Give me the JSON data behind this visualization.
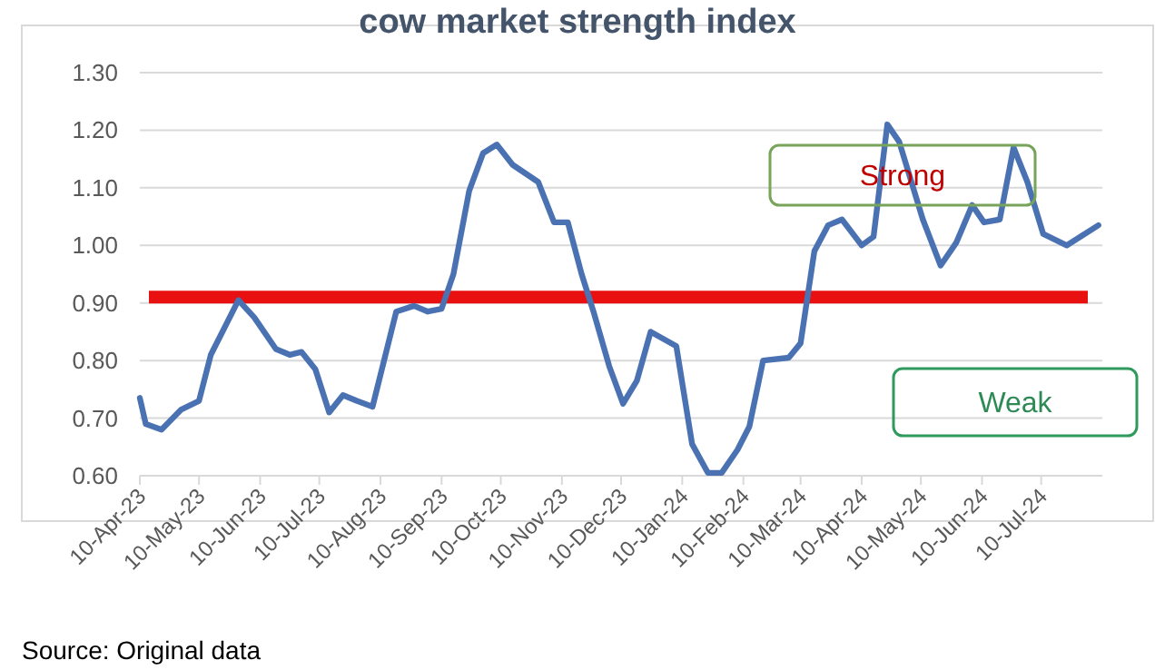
{
  "chart_data": {
    "type": "line",
    "title": "cow market strength index",
    "x": [
      "2023-04-10",
      "2023-04-13",
      "2023-04-21",
      "2023-05-01",
      "2023-05-10",
      "2023-05-16",
      "2023-05-30",
      "2023-06-07",
      "2023-06-18",
      "2023-06-25",
      "2023-07-01",
      "2023-07-08",
      "2023-07-15",
      "2023-07-22",
      "2023-07-29",
      "2023-08-06",
      "2023-08-18",
      "2023-08-27",
      "2023-09-03",
      "2023-09-10",
      "2023-09-16",
      "2023-09-24",
      "2023-10-01",
      "2023-10-08",
      "2023-10-16",
      "2023-10-29",
      "2023-11-06",
      "2023-11-13",
      "2023-11-20",
      "2023-11-26",
      "2023-12-04",
      "2023-12-11",
      "2023-12-18",
      "2023-12-25",
      "2024-01-07",
      "2024-01-15",
      "2024-01-23",
      "2024-01-30",
      "2024-02-07",
      "2024-02-13",
      "2024-02-20",
      "2024-03-04",
      "2024-03-10",
      "2024-03-17",
      "2024-03-24",
      "2024-03-31",
      "2024-04-10",
      "2024-04-16",
      "2024-04-23",
      "2024-04-29",
      "2024-05-11",
      "2024-05-20",
      "2024-05-28",
      "2024-06-05",
      "2024-06-11",
      "2024-06-19",
      "2024-06-26",
      "2024-07-03",
      "2024-07-11",
      "2024-07-23",
      "2024-08-08"
    ],
    "series": [
      {
        "color": "#4a72b2",
        "values": [
          0.735,
          0.69,
          0.68,
          0.715,
          0.73,
          0.81,
          0.905,
          0.875,
          0.82,
          0.81,
          0.815,
          0.785,
          0.71,
          0.74,
          0.73,
          0.72,
          0.885,
          0.895,
          0.885,
          0.89,
          0.95,
          1.095,
          1.16,
          1.175,
          1.14,
          1.11,
          1.04,
          1.04,
          0.95,
          0.885,
          0.79,
          0.725,
          0.765,
          0.85,
          0.825,
          0.655,
          0.605,
          0.605,
          0.645,
          0.685,
          0.8,
          0.805,
          0.83,
          0.99,
          1.035,
          1.045,
          1.0,
          1.015,
          1.21,
          1.18,
          1.045,
          0.965,
          1.005,
          1.07,
          1.04,
          1.045,
          1.17,
          1.11,
          1.02,
          1.0,
          1.035
        ]
      }
    ],
    "xlim": [
      "2023-04-10",
      "2024-08-10"
    ],
    "xticks": [
      {
        "value": "2023-04-10",
        "label": "10-Apr-23"
      },
      {
        "value": "2023-05-10",
        "label": "10-May-23"
      },
      {
        "value": "2023-06-10",
        "label": "10-Jun-23"
      },
      {
        "value": "2023-07-10",
        "label": "10-Jul-23"
      },
      {
        "value": "2023-08-10",
        "label": "10-Aug-23"
      },
      {
        "value": "2023-09-10",
        "label": "10-Sep-23"
      },
      {
        "value": "2023-10-10",
        "label": "10-Oct-23"
      },
      {
        "value": "2023-11-10",
        "label": "10-Nov-23"
      },
      {
        "value": "2023-12-10",
        "label": "10-Dec-23"
      },
      {
        "value": "2024-01-10",
        "label": "10-Jan-24"
      },
      {
        "value": "2024-02-10",
        "label": "10-Feb-24"
      },
      {
        "value": "2024-03-10",
        "label": "10-Mar-24"
      },
      {
        "value": "2024-04-10",
        "label": "10-Apr-24"
      },
      {
        "value": "2024-05-10",
        "label": "10-May-24"
      },
      {
        "value": "2024-06-10",
        "label": "10-Jun-24"
      },
      {
        "value": "2024-07-10",
        "label": "10-Jul-24"
      }
    ],
    "ylim": [
      0.6,
      1.3
    ],
    "yticks": [
      {
        "value": 0.6,
        "label": "0.60"
      },
      {
        "value": 0.7,
        "label": "0.70"
      },
      {
        "value": 0.8,
        "label": "0.80"
      },
      {
        "value": 0.9,
        "label": "0.90"
      },
      {
        "value": 1.0,
        "label": "1.00"
      },
      {
        "value": 1.1,
        "label": "1.10"
      },
      {
        "value": 1.2,
        "label": "1.20"
      },
      {
        "value": 1.3,
        "label": "1.30"
      }
    ],
    "grid": "y",
    "line_style": "solid",
    "marker": "none",
    "ref_lines": [
      {
        "axis": "y",
        "value": 0.91,
        "color": "#e81010"
      }
    ],
    "annotations": [
      "Strong",
      "Weak",
      "Source: Original data"
    ]
  }
}
